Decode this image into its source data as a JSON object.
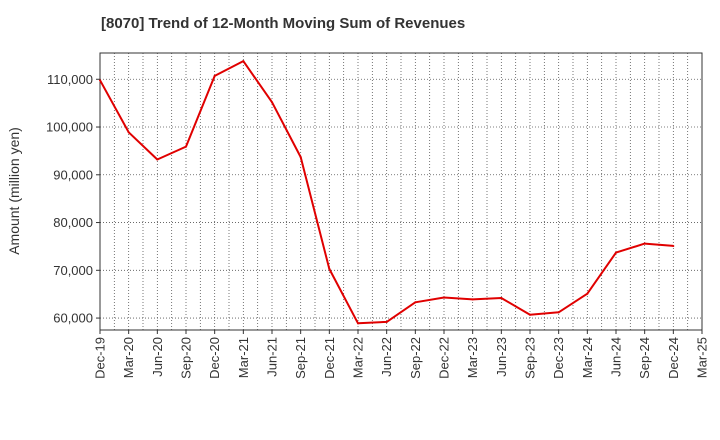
{
  "chart_data": {
    "type": "line",
    "title": "[8070]  Trend of 12-Month Moving Sum of Revenues",
    "ylabel": "Amount (million yen)",
    "xlabel": "",
    "ylim": [
      57500,
      115500
    ],
    "yticks": [
      60000,
      70000,
      80000,
      90000,
      100000,
      110000
    ],
    "ytick_labels": [
      "60,000",
      "70,000",
      "80,000",
      "90,000",
      "100,000",
      "110,000"
    ],
    "categories": [
      "Dec-19",
      "Mar-20",
      "Jun-20",
      "Sep-20",
      "Dec-20",
      "Mar-21",
      "Jun-21",
      "Sep-21",
      "Dec-21",
      "Mar-22",
      "Jun-22",
      "Sep-22",
      "Dec-22",
      "Mar-23",
      "Jun-23",
      "Sep-23",
      "Dec-23",
      "Mar-24",
      "Jun-24",
      "Sep-24",
      "Dec-24",
      "Mar-25"
    ],
    "series": [
      {
        "color": "#e00000",
        "values": [
          109800,
          98900,
          93200,
          95900,
          110700,
          113800,
          105200,
          93700,
          70300,
          58900,
          59200,
          63300,
          64300,
          63900,
          64200,
          60700,
          61200,
          65100,
          73700,
          75600,
          75100,
          null
        ]
      }
    ],
    "grid": true,
    "legend": "none"
  }
}
